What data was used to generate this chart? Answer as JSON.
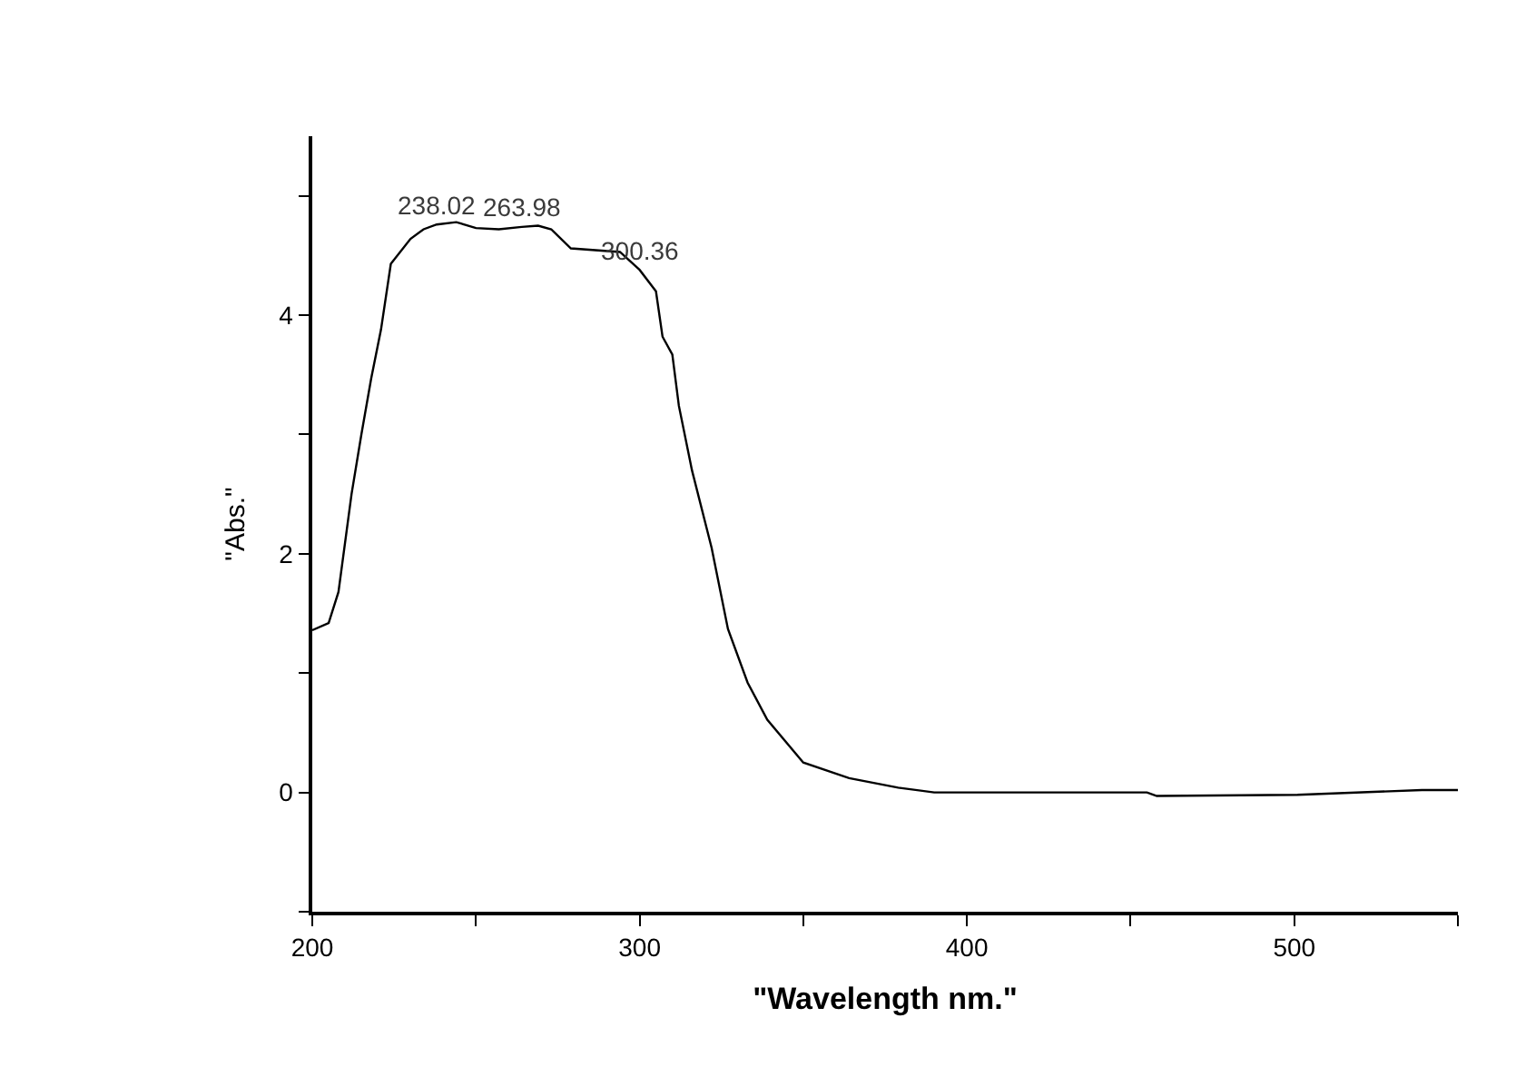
{
  "chart_data": {
    "type": "line",
    "xlabel": "\"Wavelength nm.\"",
    "ylabel": "\"Abs.\"",
    "x": [
      200,
      205,
      208,
      212,
      215,
      218,
      221,
      224,
      230,
      234,
      238,
      244,
      250,
      257,
      264,
      269,
      273,
      279,
      294,
      300,
      305,
      307,
      310,
      312,
      316,
      322,
      327,
      333,
      339,
      350,
      364,
      379,
      390,
      455,
      458,
      501,
      539,
      550
    ],
    "series": [
      {
        "color": "#000000",
        "values": [
          1.36,
          1.42,
          1.68,
          2.5,
          3.0,
          3.47,
          3.88,
          4.43,
          4.64,
          4.72,
          4.76,
          4.78,
          4.73,
          4.72,
          4.74,
          4.75,
          4.72,
          4.56,
          4.53,
          4.38,
          4.2,
          3.82,
          3.67,
          3.24,
          2.7,
          2.05,
          1.37,
          0.92,
          0.61,
          0.25,
          0.12,
          0.04,
          0.0,
          0.0,
          -0.03,
          -0.02,
          0.02,
          0.02
        ]
      }
    ],
    "xlim": [
      200,
      550
    ],
    "xticks": [
      200,
      {
        "value": 250,
        "label": null
      },
      300,
      {
        "value": 350,
        "label": null
      },
      400,
      {
        "value": 450,
        "label": null
      },
      500,
      {
        "value": 550,
        "label": null
      }
    ],
    "ylim": [
      -1,
      5.5
    ],
    "yticks": [
      {
        "value": -1,
        "label": null
      },
      0,
      {
        "value": 1,
        "label": null
      },
      2,
      {
        "value": 3,
        "label": null
      },
      4,
      {
        "value": 5,
        "label": null
      }
    ],
    "annotations": [
      {
        "text": "238.02",
        "x": 238,
        "y": 4.76
      },
      {
        "text": "263.98",
        "x": 264,
        "y": 4.74
      },
      {
        "text": "300.36",
        "x": 300,
        "y": 4.38
      }
    ],
    "marker": "none",
    "line_style": "solid"
  }
}
